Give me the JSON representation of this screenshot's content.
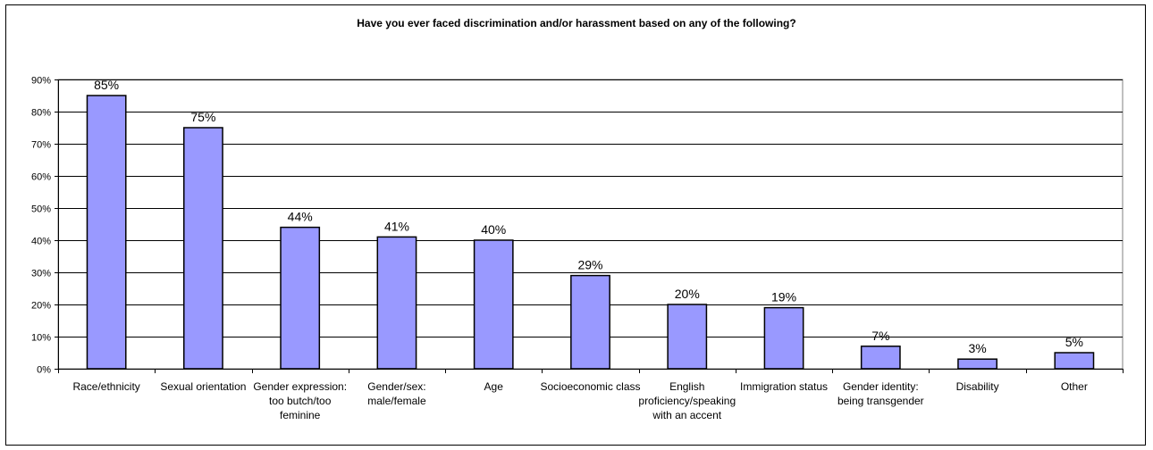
{
  "chart_data": {
    "type": "bar",
    "title": "Have you ever faced discrimination and/or harassment based on any of the following?",
    "categories": [
      [
        "Race/ethnicity"
      ],
      [
        "Sexual orientation"
      ],
      [
        "Gender expression:",
        "too butch/too",
        "feminine"
      ],
      [
        "Gender/sex:",
        "male/female"
      ],
      [
        "Age"
      ],
      [
        "Socioeconomic class"
      ],
      [
        "English",
        "proficiency/speaking",
        "with an accent"
      ],
      [
        "Immigration status"
      ],
      [
        "Gender identity:",
        "being transgender"
      ],
      [
        "Disability"
      ],
      [
        "Other"
      ]
    ],
    "values": [
      85,
      75,
      44,
      41,
      40,
      29,
      20,
      19,
      7,
      3,
      5
    ],
    "data_labels": [
      "85%",
      "75%",
      "44%",
      "41%",
      "40%",
      "29%",
      "20%",
      "19%",
      "7%",
      "3%",
      "5%"
    ],
    "ylim": [
      0,
      90
    ],
    "yticks": [
      0,
      10,
      20,
      30,
      40,
      50,
      60,
      70,
      80,
      90
    ],
    "ytick_labels": [
      "0%",
      "10%",
      "20%",
      "30%",
      "40%",
      "50%",
      "60%",
      "70%",
      "80%",
      "90%"
    ],
    "xlabel": "",
    "ylabel": "",
    "grid": true,
    "legend": "none",
    "bar_color": "#9999ff",
    "bar_edge_color": "#000000"
  }
}
